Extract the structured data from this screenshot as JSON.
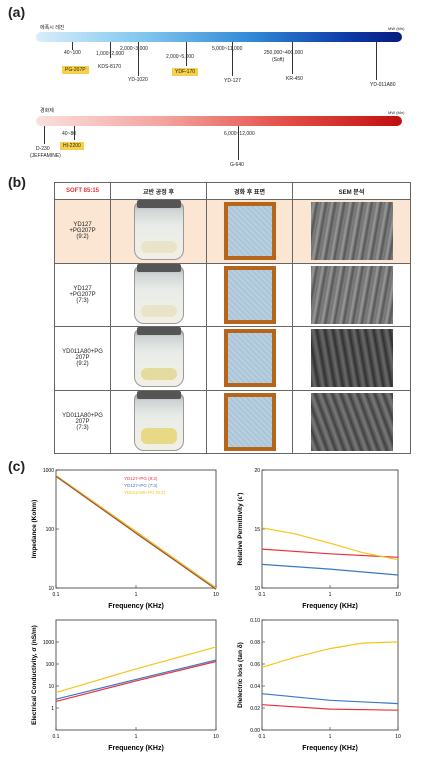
{
  "panels": {
    "a": "(a)",
    "b": "(b)",
    "c": "(c)"
  },
  "epoxy": {
    "title": "에폭시 레진",
    "end_label": "MW (Mn)",
    "items": [
      {
        "text": "40~100",
        "highlight": false
      },
      {
        "text": "PG-207P",
        "highlight": true
      },
      {
        "text": "1,000~2,000",
        "highlight": false
      },
      {
        "text": "KDS-8170",
        "highlight": false
      },
      {
        "text": "2,000~3,000",
        "highlight": false
      },
      {
        "text": "YD-1020",
        "highlight": false
      },
      {
        "text": "2,000~5,000",
        "highlight": false
      },
      {
        "text": "YDF-170",
        "highlight": true
      },
      {
        "text": "5,000~11,000",
        "highlight": false
      },
      {
        "text": "YD-127",
        "highlight": false
      },
      {
        "text": "250,000~400,000",
        "highlight": false
      },
      {
        "text": "(Soft)",
        "highlight": false
      },
      {
        "text": "KR-450",
        "highlight": false
      },
      {
        "text": "YD-011A80",
        "highlight": false
      }
    ]
  },
  "hardener": {
    "title": "경화제",
    "end_label": "MW (Mn)",
    "items": [
      {
        "text": "D-230",
        "highlight": false
      },
      {
        "text": "(JEFFAMINE)",
        "highlight": false
      },
      {
        "text": "40~80",
        "highlight": false
      },
      {
        "text": "HI-2200",
        "highlight": true
      },
      {
        "text": "6,000~12,000",
        "highlight": false
      },
      {
        "text": "G-640",
        "highlight": false
      }
    ]
  },
  "table": {
    "headers": [
      "SOFT 85:15",
      "교반 공정 후",
      "경화 후 표면",
      "SEM 분석"
    ],
    "rows": [
      {
        "label1": "YD127",
        "label2": "+PG207P",
        "label3": "(9:2)"
      },
      {
        "label1": "YD127",
        "label2": "+PG207P",
        "label3": "(7:3)"
      },
      {
        "label1": "YD011A80+PG",
        "label2": "207P",
        "label3": "(9:2)"
      },
      {
        "label1": "YD011A80+PG",
        "label2": "207P",
        "label3": "(7:3)"
      }
    ]
  },
  "colors": {
    "red": "#e8333a",
    "blue": "#3a78c8",
    "yellow": "#f5c518",
    "brown": "#a0522d",
    "highlight_row": "#fbe6d3"
  },
  "chart_data": [
    {
      "type": "line",
      "xlabel": "Frequency (KHz)",
      "ylabel": "Impedance (Kohm)",
      "xscale": "log",
      "yscale": "log",
      "xlim": [
        0.1,
        10
      ],
      "ylim": [
        10,
        1000
      ],
      "xticks": [
        "0.1",
        "1",
        "10"
      ],
      "yticks": [
        "10",
        "100",
        "1000"
      ],
      "legend": "top-center",
      "series": [
        {
          "name": "YD127+PG (9:2)",
          "color": "red",
          "x": [
            0.1,
            1,
            10
          ],
          "y": [
            800,
            90,
            10
          ]
        },
        {
          "name": "YD127+PG (7:3)",
          "color": "blue",
          "x": [
            0.1,
            1,
            10
          ],
          "y": [
            800,
            90,
            10
          ]
        },
        {
          "name": "YD011A80+PG (9:2)",
          "color": "yellow",
          "x": [
            0.1,
            1,
            10
          ],
          "y": [
            800,
            90,
            10
          ]
        },
        {
          "name": "",
          "color": "brown",
          "x": [
            0.1,
            1,
            10
          ],
          "y": [
            780,
            85,
            9.5
          ]
        }
      ]
    },
    {
      "type": "line",
      "xlabel": "Frequency (KHz)",
      "ylabel": "Relative Permittivity (ε')",
      "xscale": "log",
      "xlim": [
        0.1,
        10
      ],
      "ylim": [
        10,
        20
      ],
      "xticks": [
        "0.1",
        "1",
        "10"
      ],
      "yticks": [
        "10",
        "15",
        "20"
      ],
      "series": [
        {
          "color": "red",
          "x": [
            0.1,
            1,
            10
          ],
          "y": [
            13.3,
            12.9,
            12.6
          ]
        },
        {
          "color": "blue",
          "x": [
            0.1,
            1,
            10
          ],
          "y": [
            12.0,
            11.6,
            11.1
          ]
        },
        {
          "color": "yellow",
          "x": [
            0.1,
            0.3,
            1,
            3,
            10
          ],
          "y": [
            15.1,
            14.6,
            13.8,
            13.0,
            12.4
          ]
        }
      ]
    },
    {
      "type": "line",
      "xlabel": "Frequency (KHz)",
      "ylabel": "Electrical Conductivity, σ (nS/m)",
      "xscale": "log",
      "yscale": "log",
      "xlim": [
        0.1,
        10
      ],
      "ylim": [
        0.1,
        10000
      ],
      "xticks": [
        "0.1",
        "1",
        "10"
      ],
      "yticks": [
        "1",
        "10",
        "100",
        "1000"
      ],
      "series": [
        {
          "color": "red",
          "x": [
            0.1,
            1,
            10
          ],
          "y": [
            2.0,
            17,
            130
          ]
        },
        {
          "color": "blue",
          "x": [
            0.1,
            1,
            10
          ],
          "y": [
            2.5,
            20,
            150
          ]
        },
        {
          "color": "yellow",
          "x": [
            0.1,
            1,
            10
          ],
          "y": [
            5,
            60,
            600
          ]
        }
      ]
    },
    {
      "type": "line",
      "xlabel": "Frequency (KHz)",
      "ylabel": "Dielectric loss (tan δ)",
      "xscale": "log",
      "xlim": [
        0.1,
        10
      ],
      "ylim": [
        0.0,
        0.1
      ],
      "xticks": [
        "0.1",
        "1",
        "10"
      ],
      "yticks": [
        "0.00",
        "0.02",
        "0.04",
        "0.06",
        "0.08",
        "0.10"
      ],
      "series": [
        {
          "color": "red",
          "x": [
            0.1,
            1,
            10
          ],
          "y": [
            0.023,
            0.019,
            0.018
          ]
        },
        {
          "color": "blue",
          "x": [
            0.1,
            1,
            10
          ],
          "y": [
            0.033,
            0.027,
            0.024
          ]
        },
        {
          "color": "yellow",
          "x": [
            0.1,
            0.3,
            1,
            3,
            10
          ],
          "y": [
            0.057,
            0.066,
            0.074,
            0.079,
            0.08
          ]
        }
      ]
    }
  ]
}
